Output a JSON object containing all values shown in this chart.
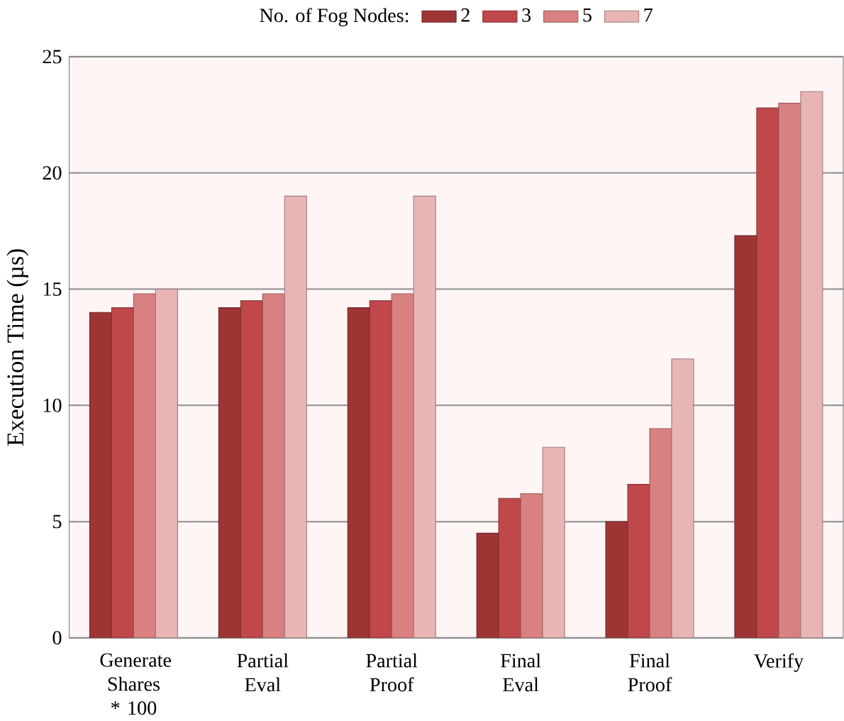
{
  "chart_data": {
    "type": "bar",
    "ylabel": "Execution Time (µs)",
    "legend_title": "No. of Fog Nodes:",
    "categories": [
      "Generate Shares * 100",
      "Partial Eval",
      "Partial Proof",
      "Final Eval",
      "Final Proof",
      "Verify"
    ],
    "series": [
      {
        "name": "2",
        "color": "#9e3535",
        "values": [
          14,
          14.2,
          14.2,
          4.5,
          5,
          17.3
        ]
      },
      {
        "name": "3",
        "color": "#c0474a",
        "values": [
          14.2,
          14.5,
          14.5,
          6,
          6.6,
          22.8
        ]
      },
      {
        "name": "5",
        "color": "#d98080",
        "values": [
          14.8,
          14.8,
          14.8,
          6.2,
          9,
          23
        ]
      },
      {
        "name": "7",
        "color": "#e8b4b4",
        "values": [
          15,
          19,
          19,
          8.2,
          12,
          23.5
        ]
      }
    ],
    "ylim": [
      0,
      25
    ],
    "yticks": [
      0,
      5,
      10,
      15,
      20,
      25
    ],
    "grid": "y",
    "legend": "top"
  }
}
